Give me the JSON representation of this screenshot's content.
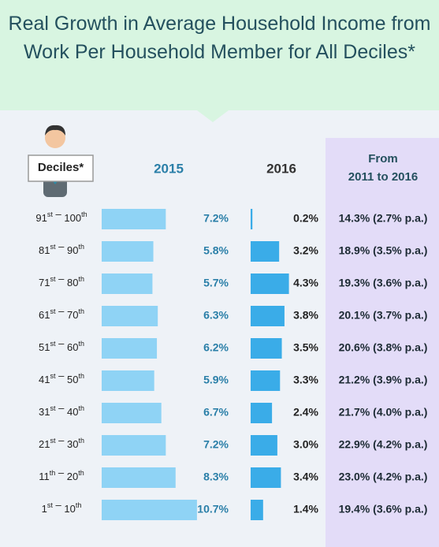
{
  "chart_data": {
    "type": "bar",
    "title": "Real Growth in Average Household Income from Work Per Household Member for All Deciles*",
    "category_header": "Deciles*",
    "categories": [
      [
        "91",
        "st",
        "100",
        "th"
      ],
      [
        "81",
        "st",
        "90",
        "th"
      ],
      [
        "71",
        "st",
        "80",
        "th"
      ],
      [
        "61",
        "st",
        "70",
        "th"
      ],
      [
        "51",
        "st",
        "60",
        "th"
      ],
      [
        "41",
        "st",
        "50",
        "th"
      ],
      [
        "31",
        "st",
        "40",
        "th"
      ],
      [
        "21",
        "st",
        "30",
        "th"
      ],
      [
        "11",
        "th",
        "20",
        "th"
      ],
      [
        "1",
        "st",
        "10",
        "th"
      ]
    ],
    "series": [
      {
        "name": "2015",
        "color": "#8fd3f5",
        "values": [
          7.2,
          5.8,
          5.7,
          6.3,
          6.2,
          5.9,
          6.7,
          7.2,
          8.3,
          10.7
        ],
        "value_labels": [
          "7.2%",
          "5.8%",
          "5.7%",
          "6.3%",
          "6.2%",
          "5.9%",
          "6.7%",
          "7.2%",
          "8.3%",
          "10.7%"
        ]
      },
      {
        "name": "2016",
        "color": "#3aace8",
        "values": [
          0.2,
          3.2,
          4.3,
          3.8,
          3.5,
          3.3,
          2.4,
          3.0,
          3.4,
          1.4
        ],
        "value_labels": [
          "0.2%",
          "3.2%",
          "4.3%",
          "3.8%",
          "3.5%",
          "3.3%",
          "2.4%",
          "3.0%",
          "3.4%",
          "1.4%"
        ]
      }
    ],
    "growth_header": [
      "From",
      "2011 to 2016"
    ],
    "growth": [
      "14.3% (2.7% p.a.)",
      "18.9% (3.5% p.a.)",
      "19.3% (3.6% p.a.)",
      "20.1% (3.7% p.a.)",
      "20.6% (3.8% p.a.)",
      "21.2% (3.9% p.a.)",
      "21.7% (4.0% p.a.)",
      "22.9% (4.2% p.a.)",
      "23.0% (4.2% p.a.)",
      "19.4% (3.6% p.a.)"
    ]
  }
}
